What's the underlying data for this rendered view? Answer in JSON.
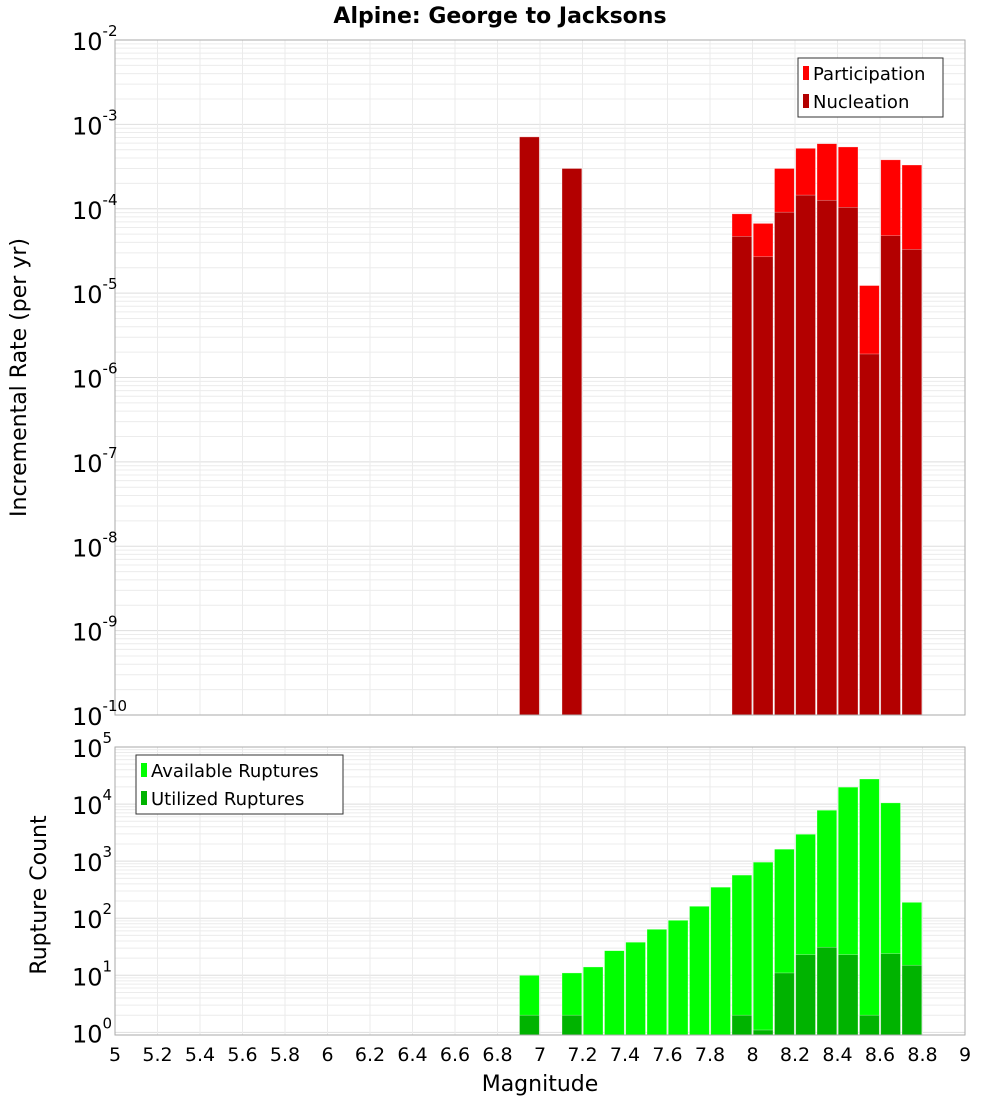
{
  "chart_data": [
    {
      "type": "bar",
      "title": "Alpine: George to Jacksons",
      "xlabel": "",
      "ylabel": "Incremental Rate (per yr)",
      "yscale": "log",
      "xlim": [
        5,
        9
      ],
      "ylim": [
        1e-10,
        0.01
      ],
      "y_tick_exponents": [
        -10,
        -9,
        -8,
        -7,
        -6,
        -5,
        -4,
        -3,
        -2
      ],
      "grid": true,
      "legend_position": "top-right",
      "x": [
        6.95,
        7.15,
        7.95,
        8.05,
        8.15,
        8.25,
        8.35,
        8.45,
        8.55,
        8.65,
        8.75
      ],
      "series": [
        {
          "name": "Participation",
          "color": "#ff0000",
          "values": [
            0.00071,
            0.0003,
            8.7e-05,
            6.7e-05,
            0.0003,
            0.00052,
            0.00059,
            0.00054,
            1.23e-05,
            0.00038,
            0.00033
          ]
        },
        {
          "name": "Nucleation",
          "color": "#b30000",
          "values": [
            0.00071,
            0.0003,
            4.7e-05,
            2.7e-05,
            9.1e-05,
            0.000145,
            0.000126,
            0.000104,
            1.9e-06,
            4.8e-05,
            3.3e-05
          ]
        }
      ]
    },
    {
      "type": "bar",
      "title": "",
      "xlabel": "Magnitude",
      "ylabel": "Rupture Count",
      "yscale": "log",
      "xlim": [
        5,
        9
      ],
      "ylim": [
        0.9,
        100000.0
      ],
      "y_tick_exponents": [
        0,
        1,
        2,
        3,
        4,
        5
      ],
      "x_ticks": [
        "5",
        "5.2",
        "5.4",
        "5.6",
        "5.8",
        "6",
        "6.2",
        "6.4",
        "6.6",
        "6.8",
        "7",
        "7.2",
        "7.4",
        "7.6",
        "7.8",
        "8",
        "8.2",
        "8.4",
        "8.6",
        "8.8",
        "9"
      ],
      "grid": true,
      "legend_position": "top-left",
      "x": [
        6.95,
        7.15,
        7.25,
        7.35,
        7.45,
        7.55,
        7.65,
        7.75,
        7.85,
        7.95,
        8.05,
        8.15,
        8.25,
        8.35,
        8.45,
        8.55,
        8.65,
        8.75
      ],
      "series": [
        {
          "name": "Available Ruptures",
          "color": "#00ff00",
          "values": [
            10,
            11,
            14,
            27,
            38,
            64,
            92,
            162,
            350,
            570,
            960,
            1620,
            2960,
            7800,
            19800,
            27500,
            10500,
            190
          ]
        },
        {
          "name": "Utilized Ruptures",
          "color": "#00b300",
          "values": [
            2,
            2,
            0,
            0,
            0,
            0,
            0,
            0,
            0,
            2,
            1.1,
            11,
            23,
            31,
            23,
            2,
            24,
            15
          ]
        }
      ]
    }
  ]
}
